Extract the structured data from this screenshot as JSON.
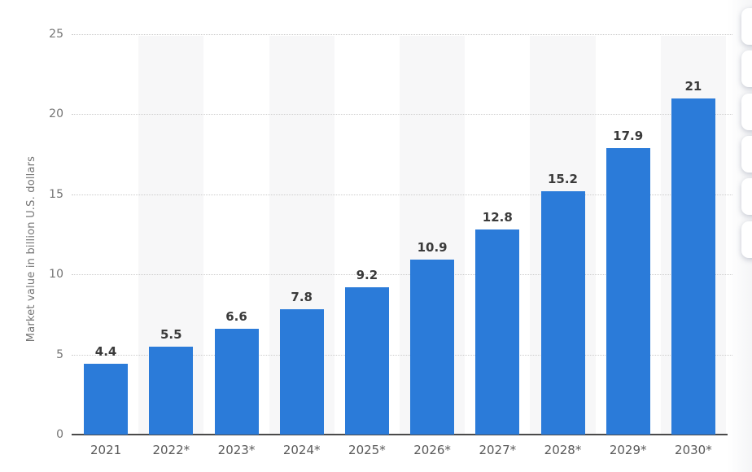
{
  "chart_data": {
    "type": "bar",
    "categories": [
      "2021",
      "2022*",
      "2023*",
      "2024*",
      "2025*",
      "2026*",
      "2027*",
      "2028*",
      "2029*",
      "2030*"
    ],
    "values": [
      4.4,
      5.5,
      6.6,
      7.8,
      9.2,
      10.9,
      12.8,
      15.2,
      17.9,
      21
    ],
    "ylabel": "Market value in billion U.S. dollars",
    "ylim": [
      0,
      25
    ],
    "yticks": [
      0,
      5,
      10,
      15,
      20,
      25
    ],
    "grid": "horizontal-dotted",
    "legend": "none",
    "column_bands": "alternating light bands behind even columns",
    "style": {
      "bar_color": "#2b7bd9",
      "band_color": "#f7f7f8",
      "grid_color": "#cccccc",
      "axis_color": "#4a4a4a",
      "value_label_color": "#3a3a3a",
      "y_tick_color": "#757575",
      "x_label_color": "#595959"
    }
  },
  "side_toolbar": {
    "button_count": 6,
    "description": "white rounded action buttons cut off at right screen edge"
  }
}
